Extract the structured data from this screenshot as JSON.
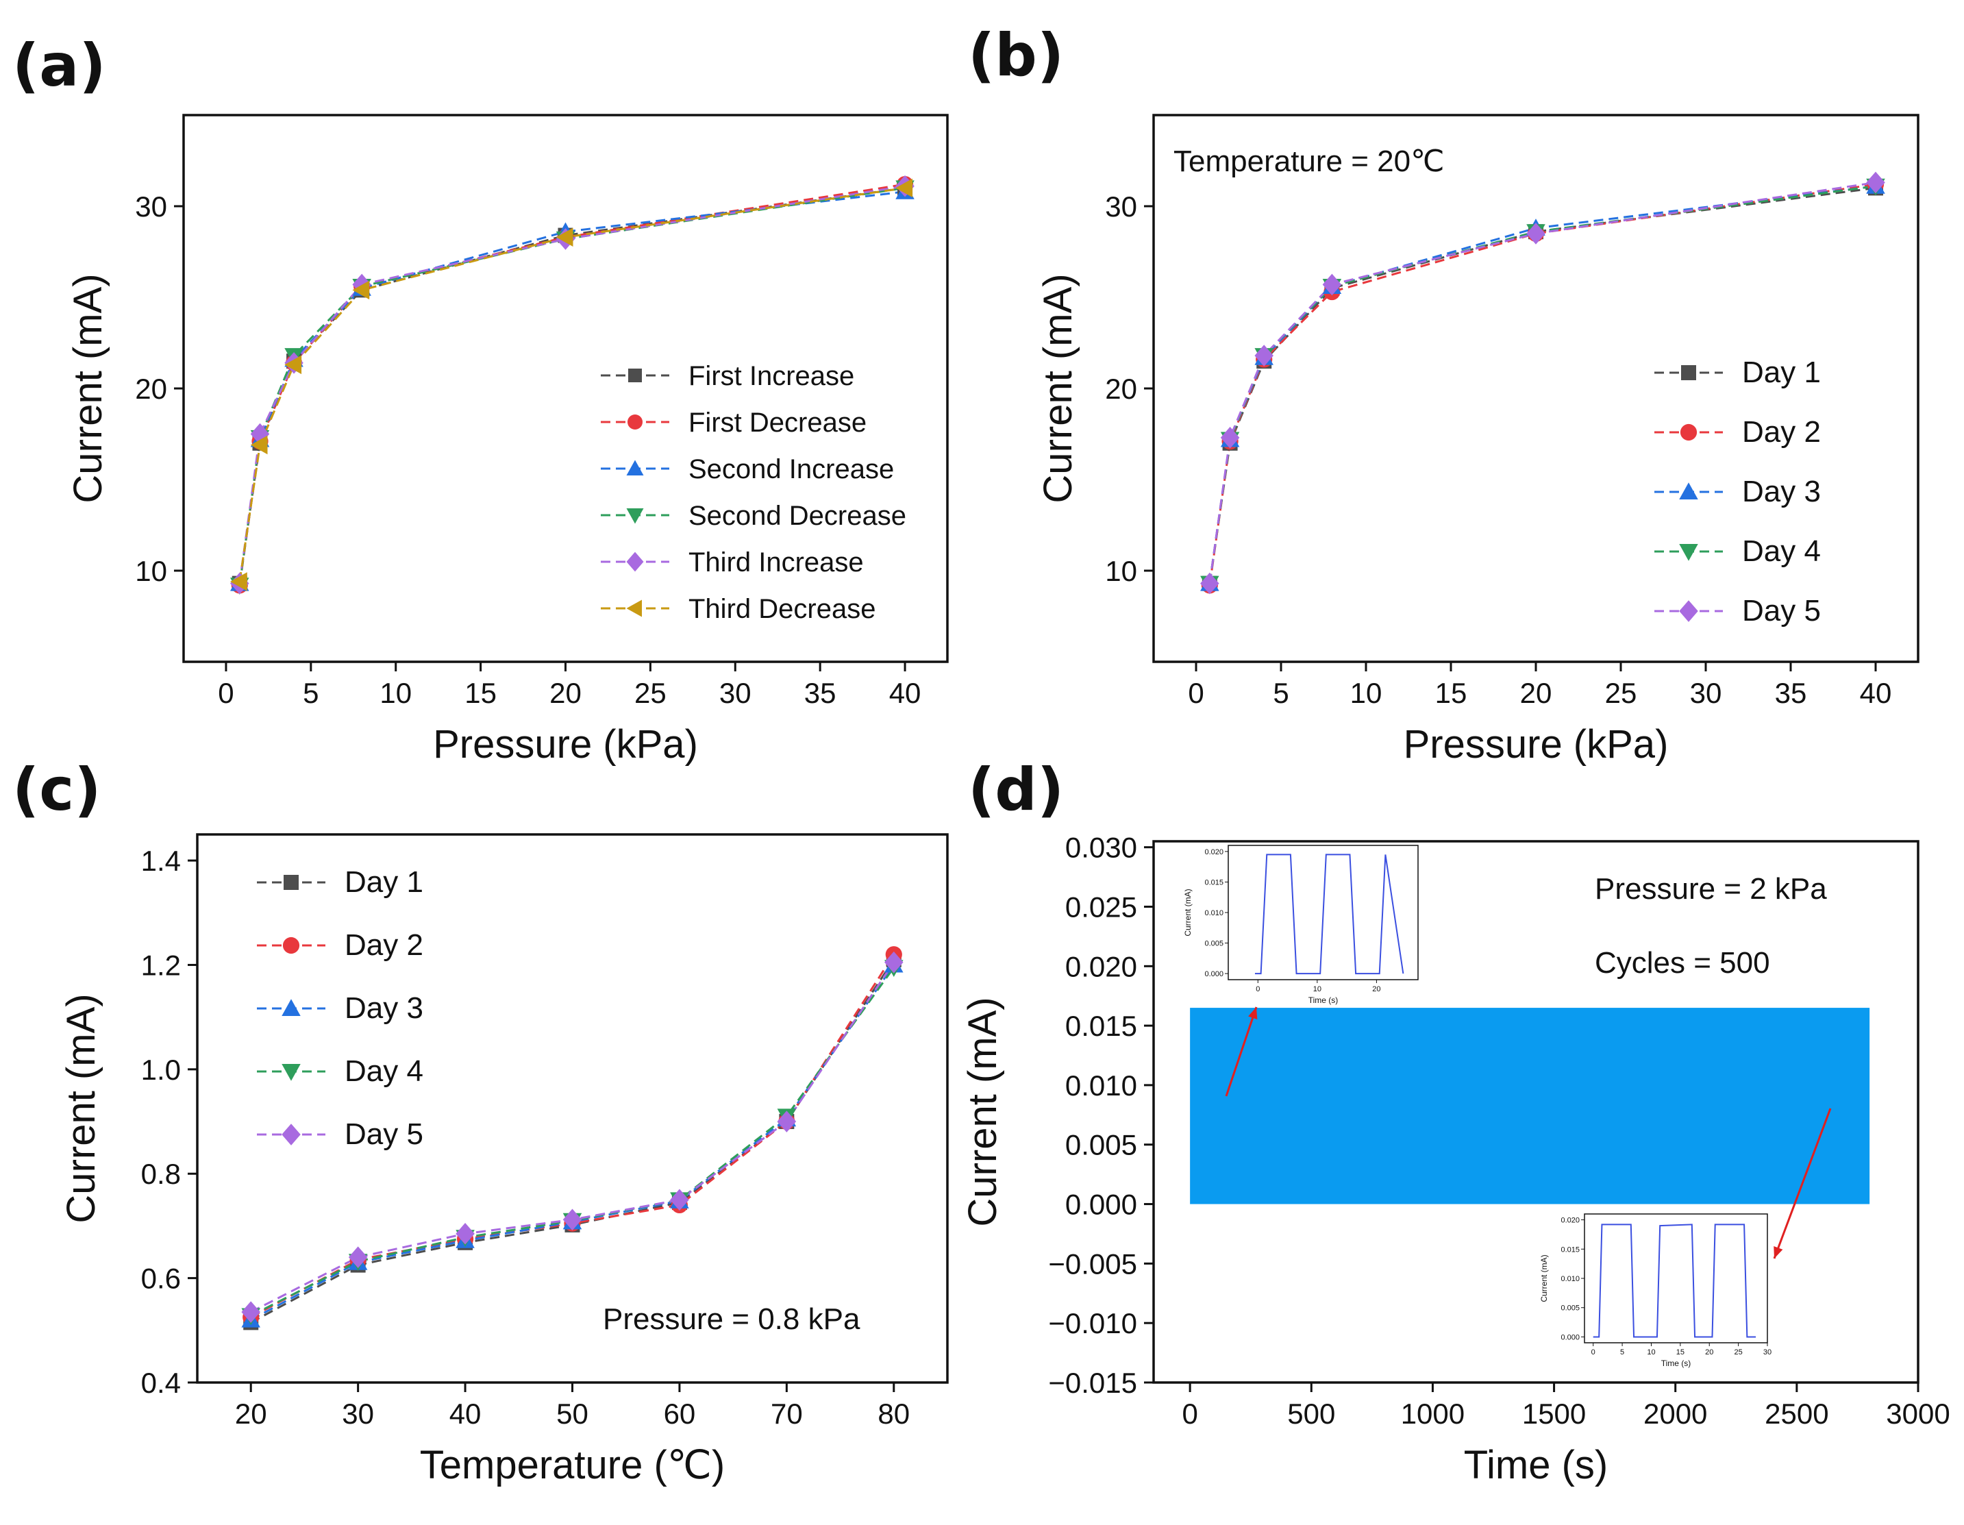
{
  "colors": {
    "black": "#4d4d4d",
    "red": "#e8383d",
    "blue": "#2471e0",
    "green": "#2e9e5b",
    "purple": "#a86ae0",
    "gold": "#c99a12",
    "fill": "#0a9bf0",
    "inset_line": "#3b4fe0",
    "arrow": "#e02020"
  },
  "chart_data": [
    {
      "panel": "(a)",
      "type": "line",
      "xlabel": "Pressure (kPa)",
      "ylabel": "Current (mA)",
      "xlim": [
        -2.5,
        42.5
      ],
      "ylim": [
        5,
        35
      ],
      "xticks": [
        "0",
        "5",
        "10",
        "15",
        "20",
        "25",
        "30",
        "35",
        "40"
      ],
      "yticks": [
        "10",
        "20",
        "30"
      ],
      "x": [
        0.8,
        2,
        4,
        8,
        20,
        40
      ],
      "series": [
        {
          "name": "First Increase",
          "marker": "square",
          "color": "black",
          "values": [
            9.3,
            17.0,
            21.5,
            25.4,
            28.4,
            31.0
          ]
        },
        {
          "name": "First Decrease",
          "marker": "circle",
          "color": "red",
          "values": [
            9.2,
            17.1,
            21.4,
            25.6,
            28.3,
            31.2
          ]
        },
        {
          "name": "Second Increase",
          "marker": "triangle-up",
          "color": "blue",
          "values": [
            9.3,
            17.2,
            21.6,
            25.5,
            28.6,
            30.8
          ]
        },
        {
          "name": "Second Decrease",
          "marker": "triangle-down",
          "color": "green",
          "values": [
            9.2,
            17.3,
            21.8,
            25.6,
            28.2,
            31.0
          ]
        },
        {
          "name": "Third Increase",
          "marker": "diamond",
          "color": "purple",
          "values": [
            9.3,
            17.5,
            21.4,
            25.7,
            28.2,
            31.1
          ]
        },
        {
          "name": "Third Decrease",
          "marker": "triangle-left",
          "color": "gold",
          "values": [
            9.4,
            16.9,
            21.3,
            25.4,
            28.3,
            31.0
          ]
        }
      ]
    },
    {
      "panel": "(b)",
      "type": "line",
      "xlabel": "Pressure (kPa)",
      "ylabel": "Current (mA)",
      "annotation": "Temperature = 20℃",
      "xlim": [
        -2.5,
        42.5
      ],
      "ylim": [
        5,
        35
      ],
      "xticks": [
        "0",
        "5",
        "10",
        "15",
        "20",
        "25",
        "30",
        "35",
        "40"
      ],
      "yticks": [
        "10",
        "20",
        "30"
      ],
      "x": [
        0.8,
        2,
        4,
        8,
        20,
        40
      ],
      "series": [
        {
          "name": "Day 1",
          "marker": "square",
          "color": "black",
          "values": [
            9.3,
            17.0,
            21.5,
            25.5,
            28.6,
            31.0
          ]
        },
        {
          "name": "Day 2",
          "marker": "circle",
          "color": "red",
          "values": [
            9.2,
            17.1,
            21.6,
            25.3,
            28.5,
            31.2
          ]
        },
        {
          "name": "Day 3",
          "marker": "triangle-up",
          "color": "blue",
          "values": [
            9.3,
            17.2,
            21.7,
            25.6,
            28.8,
            31.1
          ]
        },
        {
          "name": "Day 4",
          "marker": "triangle-down",
          "color": "green",
          "values": [
            9.3,
            17.2,
            21.8,
            25.6,
            28.6,
            31.1
          ]
        },
        {
          "name": "Day 5",
          "marker": "diamond",
          "color": "purple",
          "values": [
            9.3,
            17.3,
            21.8,
            25.7,
            28.5,
            31.3
          ]
        }
      ]
    },
    {
      "panel": "(c)",
      "type": "line",
      "xlabel": "Temperature (℃)",
      "ylabel": "Current (mA)",
      "annotation": "Pressure = 0.8 kPa",
      "xlim": [
        15,
        85
      ],
      "ylim": [
        0.4,
        1.45
      ],
      "xticks": [
        "20",
        "30",
        "40",
        "50",
        "60",
        "70",
        "80"
      ],
      "yticks": [
        "0.4",
        "0.6",
        "0.8",
        "1.0",
        "1.2",
        "1.4"
      ],
      "x": [
        20,
        30,
        40,
        50,
        60,
        70,
        80
      ],
      "series": [
        {
          "name": "Day 1",
          "marker": "square",
          "color": "black",
          "values": [
            0.515,
            0.625,
            0.668,
            0.702,
            0.745,
            0.9,
            1.21
          ]
        },
        {
          "name": "Day 2",
          "marker": "circle",
          "color": "red",
          "values": [
            0.525,
            0.635,
            0.675,
            0.705,
            0.74,
            0.9,
            1.22
          ]
        },
        {
          "name": "Day 3",
          "marker": "triangle-up",
          "color": "blue",
          "values": [
            0.52,
            0.63,
            0.672,
            0.708,
            0.748,
            0.905,
            1.2
          ]
        },
        {
          "name": "Day 4",
          "marker": "triangle-down",
          "color": "green",
          "values": [
            0.528,
            0.632,
            0.678,
            0.71,
            0.75,
            0.91,
            1.195
          ]
        },
        {
          "name": "Day 5",
          "marker": "diamond",
          "color": "purple",
          "values": [
            0.535,
            0.64,
            0.685,
            0.712,
            0.75,
            0.9,
            1.205
          ]
        }
      ]
    },
    {
      "panel": "(d)",
      "type": "area",
      "xlabel": "Time (s)",
      "ylabel": "Current (mA)",
      "annotations": [
        "Pressure = 2 kPa",
        "Cycles = 500"
      ],
      "xlim": [
        -150,
        3000
      ],
      "ylim": [
        -0.015,
        0.0305
      ],
      "xticks": [
        "0",
        "500",
        "1000",
        "1500",
        "2000",
        "2500",
        "3000"
      ],
      "yticks": [
        "0.030",
        "0.025",
        "0.020",
        "0.015",
        "0.010",
        "0.005",
        "0.000",
        "−0.005",
        "−0.010",
        "−0.015"
      ],
      "signal": {
        "x_start": 0,
        "x_end": 2800,
        "low": 0.0,
        "high": 0.0165
      },
      "insets": [
        {
          "name": "inset-start",
          "xlabel": "Time (s)",
          "ylabel": "Current (mA)",
          "xticks": [
            "0",
            "10",
            "20"
          ],
          "yticks": [
            "0.000",
            "0.005",
            "0.010",
            "0.015",
            "0.020"
          ],
          "xlim": [
            -5,
            27
          ],
          "ylim": [
            -0.001,
            0.021
          ],
          "x": [
            -0.5,
            0.5,
            1.5,
            5.5,
            6.5,
            10.5,
            11.5,
            15.5,
            16.5,
            20.5,
            21.5,
            24.5
          ],
          "y": [
            0.0,
            0.0,
            0.0195,
            0.0195,
            0.0,
            0.0,
            0.0195,
            0.0195,
            0.0,
            0.0,
            0.0195,
            0.0
          ]
        },
        {
          "name": "inset-end",
          "xlabel": "Time (s)",
          "ylabel": "Current (mA)",
          "xticks": [
            "0",
            "5",
            "10",
            "15",
            "20",
            "25",
            "30"
          ],
          "yticks": [
            "0.000",
            "0.005",
            "0.010",
            "0.015",
            "0.020"
          ],
          "xlim": [
            -1.5,
            30
          ],
          "ylim": [
            -0.001,
            0.021
          ],
          "x": [
            0,
            1,
            1.5,
            6.5,
            7,
            11,
            11.5,
            17,
            17.5,
            20.5,
            21,
            26,
            26.5,
            28
          ],
          "y": [
            0.0,
            0.0,
            0.0192,
            0.0192,
            0.0,
            0.0,
            0.019,
            0.0192,
            0.0,
            0.0,
            0.0192,
            0.0192,
            0.0,
            0.0
          ]
        }
      ]
    }
  ]
}
